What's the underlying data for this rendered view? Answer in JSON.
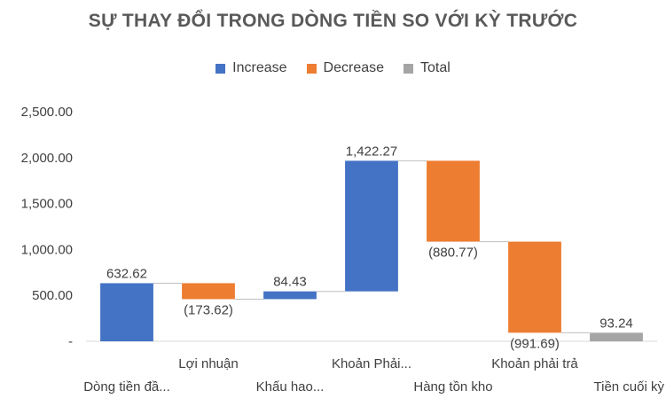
{
  "chart_data": {
    "type": "waterfall",
    "title": "SỰ THAY ĐỔI TRONG DÒNG TIỀN SO VỚI KỲ TRƯỚC",
    "legend": [
      {
        "name": "Increase",
        "color": "#4472C4"
      },
      {
        "name": "Decrease",
        "color": "#ED7D31"
      },
      {
        "name": "Total",
        "color": "#A5A5A5"
      }
    ],
    "legend_position": "top",
    "ylim": [
      0,
      2500
    ],
    "yticks": [
      {
        "value": 0,
        "label": "-"
      },
      {
        "value": 500,
        "label": "500.00"
      },
      {
        "value": 1000,
        "label": "1,000.00"
      },
      {
        "value": 1500,
        "label": "1,500.00"
      },
      {
        "value": 2000,
        "label": "2,000.00"
      },
      {
        "value": 2500,
        "label": "2,500.00"
      }
    ],
    "categories": [
      "Dòng tiền đầ...",
      "Lợi nhuận",
      "Khấu hao...",
      "Khoản Phải...",
      "Hàng tồn kho",
      "Khoản phải trả",
      "Tiền cuối kỳ"
    ],
    "values": [
      632.62,
      -173.62,
      84.43,
      1422.27,
      -880.77,
      -991.69,
      93.24
    ],
    "kinds": [
      "increase",
      "decrease",
      "increase",
      "increase",
      "decrease",
      "decrease",
      "total"
    ],
    "data_labels": [
      "632.62",
      "(173.62)",
      "84.43",
      "1,422.27",
      "(880.77)",
      "(991.69)",
      "93.24"
    ],
    "grid": false
  }
}
